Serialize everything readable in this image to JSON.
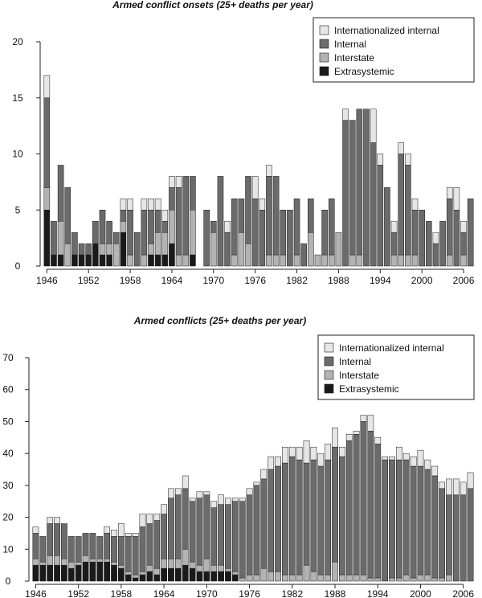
{
  "chart_data": [
    {
      "type": "bar",
      "stacked": true,
      "title": "Armed conflict onsets (25+ deaths per year)",
      "xlabel": "",
      "ylabel": "",
      "ylim": [
        0,
        20
      ],
      "yticks": [
        0,
        5,
        10,
        15,
        20
      ],
      "xtick_labels": [
        "1946",
        "1952",
        "1958",
        "1964",
        "1970",
        "1976",
        "1982",
        "1988",
        "1994",
        "2000",
        "2006"
      ],
      "x": [
        1946,
        1947,
        1948,
        1949,
        1950,
        1951,
        1952,
        1953,
        1954,
        1955,
        1956,
        1957,
        1958,
        1959,
        1960,
        1961,
        1962,
        1963,
        1964,
        1965,
        1966,
        1967,
        1968,
        1969,
        1970,
        1971,
        1972,
        1973,
        1974,
        1975,
        1976,
        1977,
        1978,
        1979,
        1980,
        1981,
        1982,
        1983,
        1984,
        1985,
        1986,
        1987,
        1988,
        1989,
        1990,
        1991,
        1992,
        1993,
        1994,
        1995,
        1996,
        1997,
        1998,
        1999,
        2000,
        2001,
        2002,
        2003,
        2004,
        2005,
        2006,
        2007
      ],
      "legend_position": "top-right",
      "series": [
        {
          "name": "Extrasystemic",
          "color": "#1a1a1a",
          "values": [
            5,
            1,
            1,
            0,
            1,
            1,
            1,
            2,
            1,
            1,
            0,
            3,
            0,
            0,
            0,
            1,
            1,
            1,
            2,
            0,
            0,
            1,
            0,
            0,
            0,
            0,
            0,
            0,
            0,
            0,
            0,
            0,
            0,
            0,
            0,
            0,
            0,
            0,
            0,
            0,
            0,
            0,
            0,
            0,
            0,
            0,
            0,
            0,
            0,
            0,
            0,
            0,
            0,
            0,
            0,
            0,
            0,
            0,
            0,
            0,
            0,
            0
          ]
        },
        {
          "name": "Interstate",
          "color": "#b3b3b3",
          "values": [
            2,
            0,
            3,
            2,
            0,
            0,
            0,
            0,
            1,
            1,
            2,
            1,
            1,
            0,
            1,
            1,
            2,
            2,
            3,
            1,
            1,
            4,
            0,
            0,
            3,
            0,
            0,
            1,
            3,
            2,
            0,
            0,
            1,
            1,
            1,
            0,
            1,
            0,
            3,
            1,
            1,
            1,
            3,
            0,
            1,
            1,
            0,
            0,
            0,
            0,
            1,
            1,
            1,
            1,
            0,
            0,
            0,
            0,
            1,
            0,
            1,
            0
          ]
        },
        {
          "name": "Internal",
          "color": "#6b6b6b",
          "values": [
            8,
            3,
            5,
            5,
            2,
            1,
            1,
            2,
            3,
            2,
            1,
            1,
            4,
            3,
            4,
            3,
            2,
            1,
            2,
            6,
            7,
            3,
            0,
            5,
            1,
            8,
            3,
            5,
            3,
            6,
            6,
            5,
            7,
            7,
            4,
            5,
            5,
            2,
            3,
            0,
            4,
            5,
            0,
            13,
            12,
            13,
            14,
            11,
            9,
            7,
            2,
            9,
            8,
            4,
            5,
            4,
            2,
            4,
            5,
            5,
            2,
            6
          ]
        },
        {
          "name": "Internationalized internal",
          "color": "#e6e6e6",
          "values": [
            2,
            0,
            0,
            0,
            0,
            0,
            0,
            0,
            0,
            0,
            0,
            1,
            1,
            0,
            1,
            1,
            1,
            1,
            1,
            1,
            0,
            0,
            0,
            0,
            0,
            0,
            1,
            0,
            0,
            0,
            2,
            1,
            1,
            0,
            0,
            0,
            0,
            0,
            0,
            0,
            0,
            0,
            0,
            1,
            0,
            0,
            0,
            3,
            1,
            0,
            1,
            1,
            1,
            1,
            0,
            0,
            1,
            0,
            1,
            2,
            1,
            0
          ]
        }
      ]
    },
    {
      "type": "bar",
      "stacked": true,
      "title": "Armed conflicts (25+ deaths per year)",
      "xlabel": "",
      "ylabel": "",
      "ylim": [
        0,
        70
      ],
      "yticks": [
        0,
        10,
        20,
        30,
        40,
        50,
        60,
        70
      ],
      "xtick_labels": [
        "1946",
        "1952",
        "1958",
        "1964",
        "1970",
        "1976",
        "1982",
        "1988",
        "1994",
        "2000",
        "2006"
      ],
      "x": [
        1946,
        1947,
        1948,
        1949,
        1950,
        1951,
        1952,
        1953,
        1954,
        1955,
        1956,
        1957,
        1958,
        1959,
        1960,
        1961,
        1962,
        1963,
        1964,
        1965,
        1966,
        1967,
        1968,
        1969,
        1970,
        1971,
        1972,
        1973,
        1974,
        1975,
        1976,
        1977,
        1978,
        1979,
        1980,
        1981,
        1982,
        1983,
        1984,
        1985,
        1986,
        1987,
        1988,
        1989,
        1990,
        1991,
        1992,
        1993,
        1994,
        1995,
        1996,
        1997,
        1998,
        1999,
        2000,
        2001,
        2002,
        2003,
        2004,
        2005,
        2006,
        2007
      ],
      "legend_position": "top-right",
      "series": [
        {
          "name": "Extrasystemic",
          "color": "#1a1a1a",
          "values": [
            5,
            5,
            5,
            5,
            5,
            4,
            5,
            6,
            6,
            6,
            6,
            5,
            4,
            2,
            1,
            2,
            3,
            2,
            4,
            4,
            4,
            5,
            4,
            3,
            3,
            3,
            3,
            3,
            2,
            0,
            0,
            0,
            0,
            0,
            0,
            0,
            0,
            0,
            0,
            0,
            0,
            0,
            0,
            0,
            0,
            0,
            0,
            0,
            0,
            0,
            0,
            0,
            0,
            0,
            0,
            0,
            0,
            0,
            0,
            0,
            0,
            0
          ]
        },
        {
          "name": "Interstate",
          "color": "#b3b3b3",
          "values": [
            2,
            1,
            3,
            3,
            2,
            2,
            1,
            2,
            1,
            1,
            1,
            1,
            1,
            1,
            1,
            1,
            2,
            2,
            3,
            3,
            3,
            5,
            2,
            2,
            4,
            2,
            2,
            1,
            1,
            1,
            2,
            2,
            4,
            3,
            3,
            2,
            2,
            2,
            5,
            3,
            2,
            2,
            6,
            2,
            2,
            2,
            2,
            1,
            1,
            0,
            1,
            1,
            2,
            1,
            2,
            2,
            1,
            1,
            2,
            0,
            0,
            0
          ]
        },
        {
          "name": "Internal",
          "color": "#6b6b6b",
          "values": [
            8,
            8,
            10,
            10,
            11,
            8,
            8,
            7,
            8,
            7,
            8,
            8,
            9,
            11,
            12,
            14,
            13,
            15,
            14,
            19,
            20,
            19,
            19,
            21,
            20,
            18,
            19,
            20,
            22,
            24,
            25,
            28,
            28,
            32,
            33,
            35,
            37,
            36,
            32,
            35,
            34,
            36,
            36,
            37,
            42,
            44,
            48,
            46,
            42,
            38,
            37,
            37,
            36,
            35,
            34,
            33,
            32,
            28,
            25,
            27,
            27,
            29
          ]
        },
        {
          "name": "Internationalized internal",
          "color": "#e6e6e6",
          "values": [
            2,
            0,
            2,
            2,
            0,
            0,
            0,
            0,
            0,
            0,
            2,
            2,
            4,
            1,
            1,
            4,
            3,
            2,
            3,
            3,
            2,
            4,
            1,
            2,
            1,
            2,
            3,
            2,
            1,
            1,
            2,
            1,
            3,
            4,
            3,
            5,
            3,
            4,
            7,
            4,
            4,
            5,
            6,
            3,
            2,
            1,
            2,
            5,
            2,
            1,
            1,
            4,
            2,
            3,
            5,
            3,
            3,
            2,
            5,
            5,
            4,
            5
          ]
        }
      ]
    }
  ]
}
